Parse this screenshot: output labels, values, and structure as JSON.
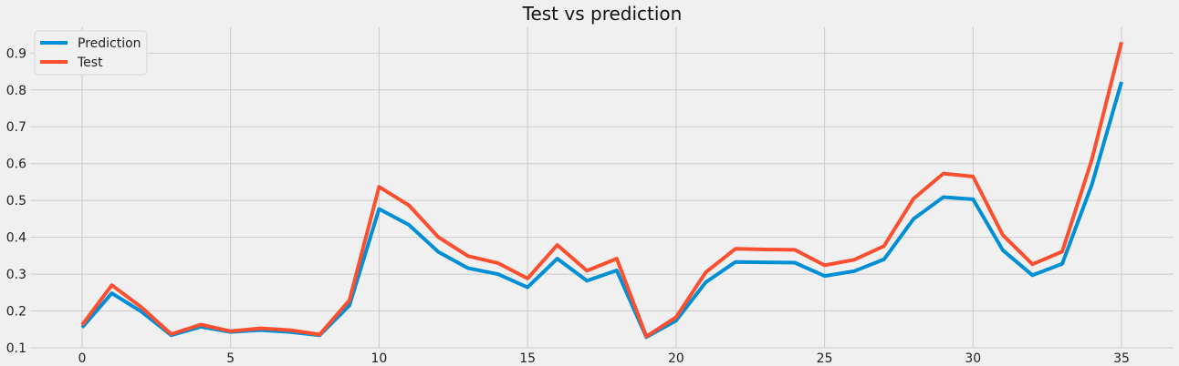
{
  "chart_data": {
    "type": "line",
    "title": "Test  vs prediction",
    "xlabel": "",
    "ylabel": "",
    "x": [
      0,
      1,
      2,
      3,
      4,
      5,
      6,
      7,
      8,
      9,
      10,
      11,
      12,
      13,
      14,
      15,
      16,
      17,
      18,
      19,
      20,
      21,
      22,
      23,
      24,
      25,
      26,
      27,
      28,
      29,
      30,
      31,
      32,
      33,
      34,
      35
    ],
    "xlim": [
      -1.75,
      36.75
    ],
    "ylim": [
      0.1,
      0.97
    ],
    "xticks": [
      0,
      5,
      10,
      15,
      20,
      25,
      30,
      35
    ],
    "yticks": [
      0.1,
      0.2,
      0.3,
      0.4,
      0.5,
      0.6,
      0.7,
      0.8,
      0.9
    ],
    "grid": true,
    "legend_position": "top-left",
    "series": [
      {
        "name": "Prediction",
        "color": "#008fd5",
        "values": [
          0.155,
          0.248,
          0.198,
          0.134,
          0.157,
          0.143,
          0.148,
          0.143,
          0.134,
          0.215,
          0.477,
          0.434,
          0.36,
          0.316,
          0.3,
          0.264,
          0.342,
          0.282,
          0.31,
          0.129,
          0.174,
          0.278,
          0.333,
          0.332,
          0.331,
          0.295,
          0.308,
          0.34,
          0.45,
          0.509,
          0.503,
          0.365,
          0.297,
          0.328,
          0.543,
          0.822
        ]
      },
      {
        "name": "Test",
        "color": "#fc4f30",
        "values": [
          0.162,
          0.27,
          0.21,
          0.137,
          0.163,
          0.145,
          0.153,
          0.148,
          0.136,
          0.229,
          0.537,
          0.487,
          0.4,
          0.349,
          0.33,
          0.288,
          0.379,
          0.309,
          0.342,
          0.131,
          0.183,
          0.305,
          0.369,
          0.367,
          0.366,
          0.324,
          0.339,
          0.376,
          0.505,
          0.573,
          0.565,
          0.406,
          0.327,
          0.361,
          0.611,
          0.93
        ]
      }
    ]
  }
}
